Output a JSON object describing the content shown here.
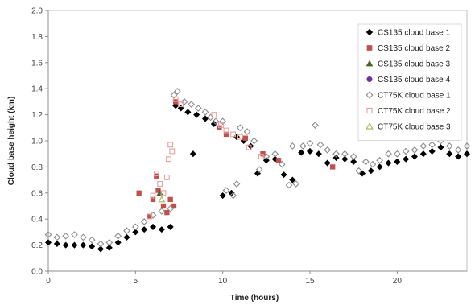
{
  "chart_data": {
    "type": "scatter",
    "title": "",
    "xlabel": "Time (hours)",
    "ylabel": "Cloud base height (km)",
    "xlim": [
      0,
      24
    ],
    "ylim": [
      0,
      2
    ],
    "x_ticks": [
      "0",
      "5",
      "10",
      "15",
      "20"
    ],
    "y_ticks": [
      "0.0",
      "0.2",
      "0.4",
      "0.6",
      "0.8",
      "1.0",
      "1.2",
      "1.4",
      "1.6",
      "1.8",
      "2.0"
    ],
    "grid": false,
    "legend_position": "top-right",
    "series": [
      {
        "name": "CS135 cloud base 1",
        "marker": "diamond-filled",
        "color": "#000000",
        "points": [
          [
            0.0,
            0.22
          ],
          [
            0.5,
            0.21
          ],
          [
            1.0,
            0.2
          ],
          [
            1.5,
            0.2
          ],
          [
            2.0,
            0.2
          ],
          [
            2.5,
            0.19
          ],
          [
            3.0,
            0.17
          ],
          [
            3.5,
            0.18
          ],
          [
            4.0,
            0.22
          ],
          [
            4.5,
            0.26
          ],
          [
            5.0,
            0.3
          ],
          [
            5.5,
            0.32
          ],
          [
            6.0,
            0.34
          ],
          [
            6.5,
            0.32
          ],
          [
            7.0,
            0.34
          ],
          [
            7.3,
            1.27
          ],
          [
            7.6,
            1.25
          ],
          [
            8.0,
            1.22
          ],
          [
            8.3,
            0.9
          ],
          [
            8.5,
            1.2
          ],
          [
            9.0,
            1.17
          ],
          [
            9.5,
            1.13
          ],
          [
            10.0,
            0.58
          ],
          [
            10.5,
            0.6
          ],
          [
            10.8,
            1.03
          ],
          [
            11.2,
            1.0
          ],
          [
            11.6,
            0.96
          ],
          [
            12.0,
            0.75
          ],
          [
            12.5,
            0.85
          ],
          [
            13.0,
            0.86
          ],
          [
            13.5,
            0.74
          ],
          [
            14.0,
            0.7
          ],
          [
            14.5,
            0.91
          ],
          [
            15.0,
            0.92
          ],
          [
            15.5,
            0.9
          ],
          [
            16.0,
            0.83
          ],
          [
            16.5,
            0.87
          ],
          [
            17.0,
            0.86
          ],
          [
            17.5,
            0.84
          ],
          [
            18.0,
            0.75
          ],
          [
            18.5,
            0.77
          ],
          [
            19.0,
            0.8
          ],
          [
            19.5,
            0.83
          ],
          [
            20.0,
            0.84
          ],
          [
            20.5,
            0.86
          ],
          [
            21.0,
            0.88
          ],
          [
            21.5,
            0.9
          ],
          [
            22.0,
            0.92
          ],
          [
            22.5,
            0.95
          ],
          [
            23.0,
            0.9
          ],
          [
            23.5,
            0.88
          ],
          [
            24.0,
            0.9
          ]
        ]
      },
      {
        "name": "CS135 cloud base 2",
        "marker": "square-filled",
        "color": "#c0504d",
        "points": [
          [
            5.2,
            0.6
          ],
          [
            5.8,
            0.42
          ],
          [
            6.0,
            0.55
          ],
          [
            6.2,
            0.73
          ],
          [
            6.3,
            0.62
          ],
          [
            6.6,
            0.5
          ],
          [
            6.8,
            0.45
          ],
          [
            7.0,
            0.55
          ],
          [
            7.2,
            0.5
          ],
          [
            7.3,
            1.3
          ],
          [
            9.8,
            1.1
          ],
          [
            10.2,
            1.05
          ],
          [
            11.3,
            1.02
          ],
          [
            12.3,
            0.9
          ],
          [
            13.2,
            0.85
          ],
          [
            16.3,
            0.8
          ]
        ]
      },
      {
        "name": "CS135 cloud base 3",
        "marker": "triangle-filled",
        "color": "#4f6228",
        "points": [
          [
            6.4,
            0.6
          ]
        ]
      },
      {
        "name": "CS135 cloud base 4",
        "marker": "circle-filled",
        "color": "#7030a0",
        "points": []
      },
      {
        "name": "CT75K cloud base 1",
        "marker": "diamond-open",
        "color": "#8c8c8c",
        "points": [
          [
            0.0,
            0.28
          ],
          [
            0.5,
            0.26
          ],
          [
            1.0,
            0.27
          ],
          [
            1.5,
            0.28
          ],
          [
            2.0,
            0.26
          ],
          [
            2.5,
            0.24
          ],
          [
            3.0,
            0.21
          ],
          [
            3.5,
            0.22
          ],
          [
            4.0,
            0.27
          ],
          [
            4.5,
            0.31
          ],
          [
            5.0,
            0.34
          ],
          [
            5.5,
            0.38
          ],
          [
            6.0,
            0.43
          ],
          [
            6.5,
            0.46
          ],
          [
            7.0,
            0.48
          ],
          [
            7.2,
            1.35
          ],
          [
            7.4,
            1.38
          ],
          [
            7.8,
            1.3
          ],
          [
            8.2,
            1.28
          ],
          [
            8.6,
            1.25
          ],
          [
            9.0,
            1.22
          ],
          [
            9.3,
            1.18
          ],
          [
            9.6,
            1.15
          ],
          [
            10.0,
            1.15
          ],
          [
            10.2,
            0.62
          ],
          [
            10.6,
            0.58
          ],
          [
            10.8,
            0.67
          ],
          [
            11.0,
            1.1
          ],
          [
            11.4,
            1.07
          ],
          [
            11.8,
            1.0
          ],
          [
            12.1,
            0.78
          ],
          [
            12.5,
            0.88
          ],
          [
            13.0,
            0.9
          ],
          [
            13.4,
            0.82
          ],
          [
            13.8,
            0.66
          ],
          [
            14.0,
            0.96
          ],
          [
            14.2,
            0.67
          ],
          [
            14.6,
            0.96
          ],
          [
            15.0,
            0.98
          ],
          [
            15.3,
            1.12
          ],
          [
            15.6,
            0.97
          ],
          [
            16.0,
            0.93
          ],
          [
            16.5,
            0.9
          ],
          [
            17.0,
            0.9
          ],
          [
            17.5,
            0.88
          ],
          [
            17.8,
            0.77
          ],
          [
            18.2,
            0.84
          ],
          [
            18.6,
            0.82
          ],
          [
            19.0,
            0.85
          ],
          [
            19.5,
            0.9
          ],
          [
            20.0,
            0.9
          ],
          [
            20.5,
            0.92
          ],
          [
            21.0,
            0.93
          ],
          [
            21.5,
            0.96
          ],
          [
            22.0,
            0.97
          ],
          [
            22.5,
            1.0
          ],
          [
            23.0,
            0.96
          ],
          [
            23.5,
            0.93
          ],
          [
            24.0,
            0.96
          ]
        ]
      },
      {
        "name": "CT75K cloud base 2",
        "marker": "square-open",
        "color": "#e6a09e",
        "points": [
          [
            5.8,
            0.42
          ],
          [
            6.0,
            0.58
          ],
          [
            6.2,
            0.75
          ],
          [
            6.4,
            0.67
          ],
          [
            6.6,
            0.6
          ],
          [
            6.8,
            0.72
          ],
          [
            6.9,
            0.86
          ],
          [
            7.0,
            0.97
          ],
          [
            7.1,
            0.92
          ],
          [
            7.3,
            1.32
          ],
          [
            7.6,
            1.28
          ],
          [
            9.5,
            1.2
          ],
          [
            9.9,
            1.12
          ],
          [
            10.2,
            1.08
          ],
          [
            10.6,
            1.05
          ],
          [
            11.0,
            1.03
          ],
          [
            11.5,
            0.95
          ],
          [
            12.2,
            0.88
          ]
        ]
      },
      {
        "name": "CT75K cloud base 3",
        "marker": "triangle-open",
        "color": "#9bbb59",
        "points": [
          [
            6.5,
            0.55
          ]
        ]
      }
    ]
  }
}
